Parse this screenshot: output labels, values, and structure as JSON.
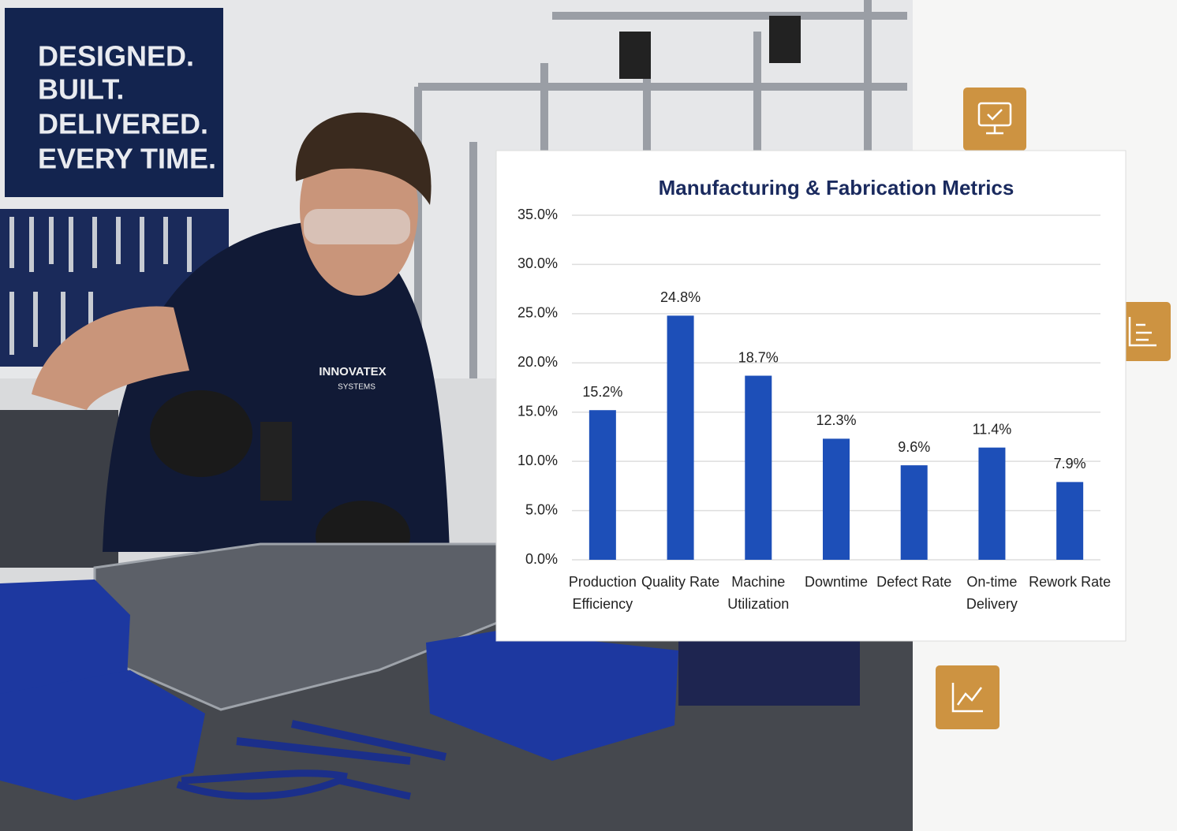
{
  "photo": {
    "sign": [
      "DESIGNED.",
      "BUILT.",
      "DELIVERED.",
      "EVERY TIME."
    ],
    "shirt_logo": [
      "INNOVATEX",
      "SYSTEMS"
    ]
  },
  "chart_data": {
    "type": "bar",
    "title": "Manufacturing & Fabrication Metrics",
    "categories": [
      "Production Efficiency",
      "Quality Rate",
      "Machine Utilization",
      "Downtime",
      "Defect Rate",
      "On-time Delivery",
      "Rework Rate"
    ],
    "values": [
      15.2,
      24.8,
      18.7,
      12.3,
      9.6,
      11.4,
      7.9
    ],
    "value_labels": [
      "15.2%",
      "24.8%",
      "18.7%",
      "12.3%",
      "9.6%",
      "11.4%",
      "7.9%"
    ],
    "color": "#1d4fb8",
    "ylim": [
      0,
      35
    ],
    "yticks": [
      {
        "value": 0,
        "label": "0.0%"
      },
      {
        "value": 5,
        "label": "5.0%"
      },
      {
        "value": 10,
        "label": "10.0%"
      },
      {
        "value": 15,
        "label": "15.0%"
      },
      {
        "value": 20,
        "label": "20.0%"
      },
      {
        "value": 25,
        "label": "25.0%"
      },
      {
        "value": 30,
        "label": "30.0%"
      },
      {
        "value": 35,
        "label": "35.0%"
      }
    ],
    "grid": true
  }
}
